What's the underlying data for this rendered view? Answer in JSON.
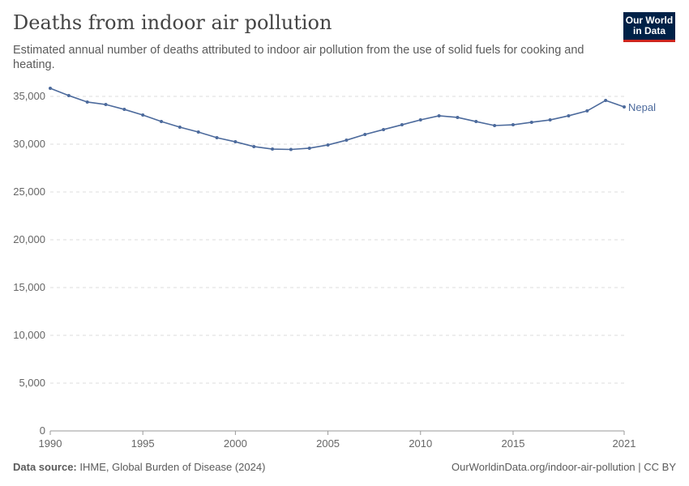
{
  "header": {
    "title": "Deaths from indoor air pollution",
    "subtitle": "Estimated annual number of deaths attributed to indoor air pollution from the use of solid fuels for cooking and heating.",
    "logo": "Our World in Data"
  },
  "footer": {
    "source_label": "Data source:",
    "source": "IHME, Global Burden of Disease (2024)",
    "url": "OurWorldinData.org/indoor-air-pollution | CC BY"
  },
  "chart_data": {
    "type": "line",
    "title": "Deaths from indoor air pollution",
    "xlim": [
      1990,
      2021
    ],
    "ylim": [
      0,
      35000
    ],
    "x_ticks": [
      "1990",
      "1995",
      "2000",
      "2005",
      "2010",
      "2015",
      "2021"
    ],
    "y_ticks": [
      "0",
      "5,000",
      "10,000",
      "15,000",
      "20,000",
      "25,000",
      "30,000",
      "35,000"
    ],
    "grid": "horizontal dashed",
    "legend": "inline-right",
    "series": [
      {
        "name": "Nepal",
        "color": "#4c6a9c",
        "x": [
          1990,
          1991,
          1992,
          1993,
          1994,
          1995,
          1996,
          1997,
          1998,
          1999,
          2000,
          2001,
          2002,
          2003,
          2004,
          2005,
          2006,
          2007,
          2008,
          2009,
          2010,
          2011,
          2012,
          2013,
          2014,
          2015,
          2016,
          2017,
          2018,
          2019,
          2020,
          2021
        ],
        "values": [
          35850,
          35090,
          34410,
          34150,
          33640,
          33050,
          32370,
          31780,
          31270,
          30680,
          30250,
          29750,
          29490,
          29450,
          29580,
          29920,
          30420,
          31020,
          31530,
          32030,
          32540,
          32970,
          32800,
          32370,
          31950,
          32030,
          32290,
          32540,
          32970,
          33480,
          34580,
          33900
        ]
      }
    ]
  }
}
